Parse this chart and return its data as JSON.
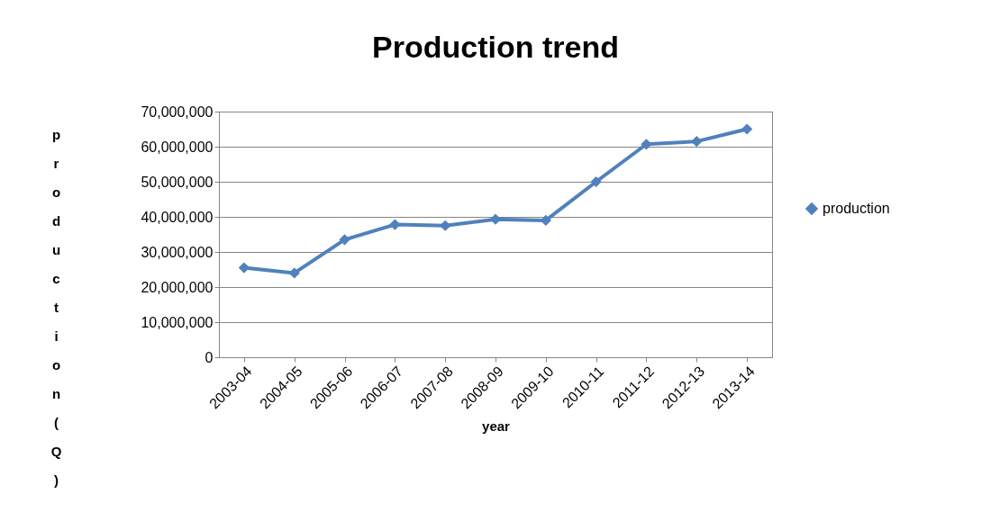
{
  "chart_data": {
    "type": "line",
    "title": "Production trend",
    "xlabel": "year",
    "ylabel": "production (Q)",
    "categories": [
      "2003-04",
      "2004-05",
      "2005-06",
      "2006-07",
      "2007-08",
      "2008-09",
      "2009-10",
      "2010-11",
      "2011-12",
      "2012-13",
      "2013-14"
    ],
    "series": [
      {
        "name": "production",
        "color": "#4f81bd",
        "values": [
          25500000,
          24000000,
          33500000,
          37800000,
          37500000,
          39300000,
          39000000,
          50000000,
          60700000,
          61500000,
          65000000
        ]
      }
    ],
    "ylim": [
      0,
      70000000
    ],
    "yticks": [
      0,
      {
        "value": 10000000,
        "label": "10,000,000"
      },
      {
        "value": 20000000,
        "label": "20,000,000"
      },
      {
        "value": 30000000,
        "label": "30,000,000"
      },
      {
        "value": 40000000,
        "label": "40,000,000"
      },
      {
        "value": 50000000,
        "label": "50,000,000"
      },
      {
        "value": 60000000,
        "label": "60,000,000"
      },
      {
        "value": 70000000,
        "label": "70,000,000"
      }
    ],
    "grid": "y",
    "legend": "right",
    "marker": "diamond",
    "line_style": "solid"
  }
}
